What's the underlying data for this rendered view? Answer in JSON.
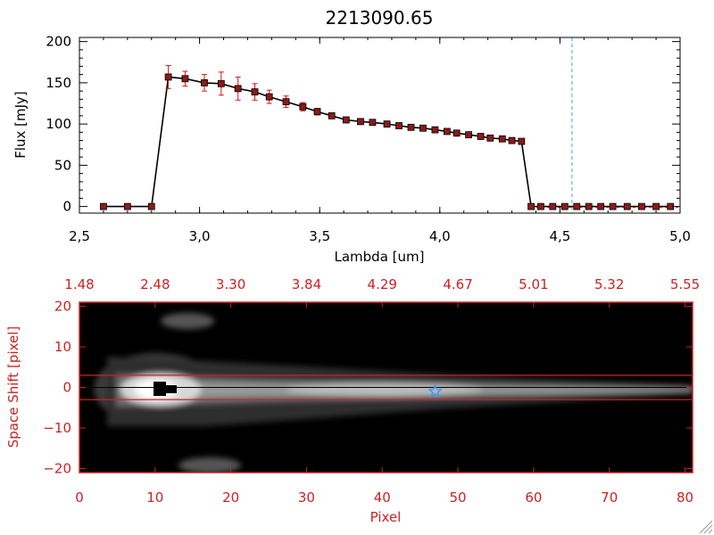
{
  "chart_data": [
    {
      "type": "line",
      "title": "2213090.65",
      "xlabel": "Lambda [um]",
      "ylabel": "Flux [mJy]",
      "xlim": [
        2.5,
        5.0
      ],
      "ylim": [
        -8,
        205
      ],
      "x_ticks": [
        2.5,
        3.0,
        3.5,
        4.0,
        4.5,
        5.0
      ],
      "x_tick_labels": [
        "2,5",
        "3,0",
        "3,5",
        "4,0",
        "4,5",
        "5,0"
      ],
      "y_ticks": [
        0,
        50,
        100,
        150,
        200
      ],
      "y_tick_labels": [
        "0",
        "50",
        "100",
        "150",
        "200"
      ],
      "line_color": "#000000",
      "marker_color": "#8b1a1a",
      "error_color": "#dd1111",
      "reference_line": {
        "x": 4.55,
        "color": "#4da6d9",
        "style": "dashed"
      },
      "series": [
        {
          "name": "flux",
          "x": [
            2.6,
            2.7,
            2.8,
            2.87,
            2.94,
            3.02,
            3.09,
            3.16,
            3.23,
            3.29,
            3.36,
            3.43,
            3.49,
            3.55,
            3.61,
            3.67,
            3.72,
            3.78,
            3.83,
            3.88,
            3.93,
            3.98,
            4.03,
            4.07,
            4.12,
            4.17,
            4.21,
            4.26,
            4.3,
            4.34,
            4.38,
            4.42,
            4.47,
            4.52,
            4.57,
            4.62,
            4.67,
            4.72,
            4.78,
            4.84,
            4.9,
            4.96
          ],
          "y": [
            0,
            0,
            0,
            157,
            155,
            150,
            149,
            143,
            139,
            133,
            127,
            121,
            115,
            110,
            105,
            103,
            102,
            100,
            98,
            96,
            95,
            93,
            91,
            89,
            87,
            85,
            83,
            82,
            80,
            79,
            0,
            0,
            0,
            0,
            0,
            0,
            0,
            0,
            0,
            0,
            0,
            0
          ],
          "err": [
            0,
            0,
            0,
            14,
            9,
            10,
            14,
            14,
            10,
            8,
            7,
            5,
            4,
            3,
            3,
            3,
            2,
            2,
            2,
            2,
            2,
            2,
            2,
            2,
            2,
            2,
            2,
            2,
            2,
            2,
            0,
            0,
            0,
            0,
            0,
            0,
            0,
            0,
            0,
            0,
            0,
            0
          ]
        }
      ]
    },
    {
      "type": "heatmap",
      "xlabel": "Pixel",
      "ylabel": "Space Shift [pixel]",
      "xlim": [
        0,
        81
      ],
      "ylim": [
        -21,
        21
      ],
      "x_ticks": [
        0,
        10,
        20,
        30,
        40,
        50,
        60,
        70,
        80
      ],
      "x_tick_labels": [
        "0",
        "10",
        "20",
        "30",
        "40",
        "50",
        "60",
        "70",
        "80"
      ],
      "y_ticks": [
        -20,
        -10,
        0,
        10,
        20
      ],
      "y_tick_labels": [
        "−20",
        "−10",
        "0",
        "10",
        "20"
      ],
      "top_axis_ticks": [
        0,
        10,
        20,
        30,
        40,
        50,
        60,
        70,
        80
      ],
      "top_axis_labels": [
        "1.48",
        "2.48",
        "3.30",
        "3.84",
        "4.29",
        "4.67",
        "5.01",
        "5.32",
        "5.55"
      ],
      "axis_color": "#cc2222",
      "aperture_lines_y": [
        3,
        -3
      ],
      "aperture_color": "#cc2222",
      "trace_center_y": 0,
      "source_peak_pixel": 10.5,
      "star_marker": {
        "x": 47,
        "y": -1,
        "color": "#3399ff"
      }
    }
  ]
}
